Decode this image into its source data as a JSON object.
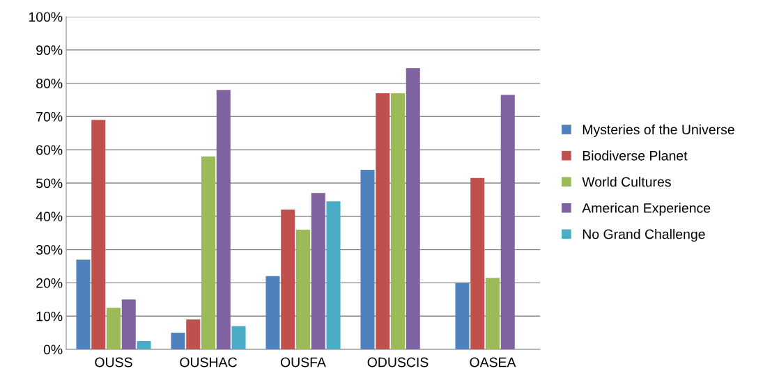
{
  "chart_data": {
    "type": "bar",
    "categories": [
      "OUSS",
      "OUSHAC",
      "OUSFA",
      "ODUSCIS",
      "OASEA"
    ],
    "series": [
      {
        "name": "Mysteries of the Universe",
        "color": "#4f81bd",
        "values": [
          27,
          5,
          22,
          54,
          20
        ]
      },
      {
        "name": "Biodiverse Planet",
        "color": "#c0504d",
        "values": [
          69,
          9,
          42,
          77,
          51.5
        ]
      },
      {
        "name": "World Cultures",
        "color": "#9bbb59",
        "values": [
          12.5,
          58,
          36,
          77,
          21.5
        ]
      },
      {
        "name": "American Experience",
        "color": "#8064a2",
        "values": [
          15,
          78,
          47,
          84.5,
          76.5
        ]
      },
      {
        "name": "No Grand Challenge",
        "color": "#4bacc6",
        "values": [
          2.5,
          7,
          44.5,
          null,
          null
        ]
      }
    ],
    "ylim": [
      0,
      100
    ],
    "yticks": [
      {
        "value": 0,
        "label": "0%"
      },
      {
        "value": 10,
        "label": "10%"
      },
      {
        "value": 20,
        "label": "20%"
      },
      {
        "value": 30,
        "label": "30%"
      },
      {
        "value": 40,
        "label": "40%"
      },
      {
        "value": 50,
        "label": "50%"
      },
      {
        "value": 60,
        "label": "60%"
      },
      {
        "value": 70,
        "label": "70%"
      },
      {
        "value": 80,
        "label": "80%"
      },
      {
        "value": 90,
        "label": "90%"
      },
      {
        "value": 100,
        "label": "100%"
      }
    ],
    "grid": "y",
    "legend": "right"
  }
}
